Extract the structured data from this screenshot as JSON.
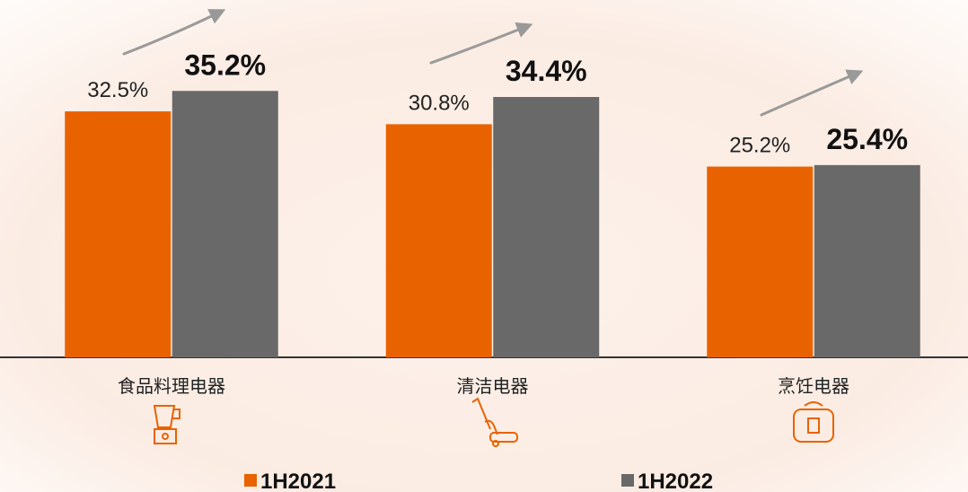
{
  "chart_data": {
    "type": "bar",
    "categories": [
      "食品料理电器",
      "清洁电器",
      "烹饪电器"
    ],
    "series": [
      {
        "name": "1H2021",
        "color": "#e96200",
        "values": [
          32.5,
          30.8,
          25.2
        ],
        "value_labels": [
          "32.5%",
          "30.8%",
          "25.2%"
        ]
      },
      {
        "name": "1H2022",
        "color": "#696969",
        "values": [
          35.2,
          34.4,
          25.4
        ],
        "value_labels": [
          "35.2%",
          "34.4%",
          "25.4%"
        ]
      }
    ],
    "legend": "bottom"
  }
}
